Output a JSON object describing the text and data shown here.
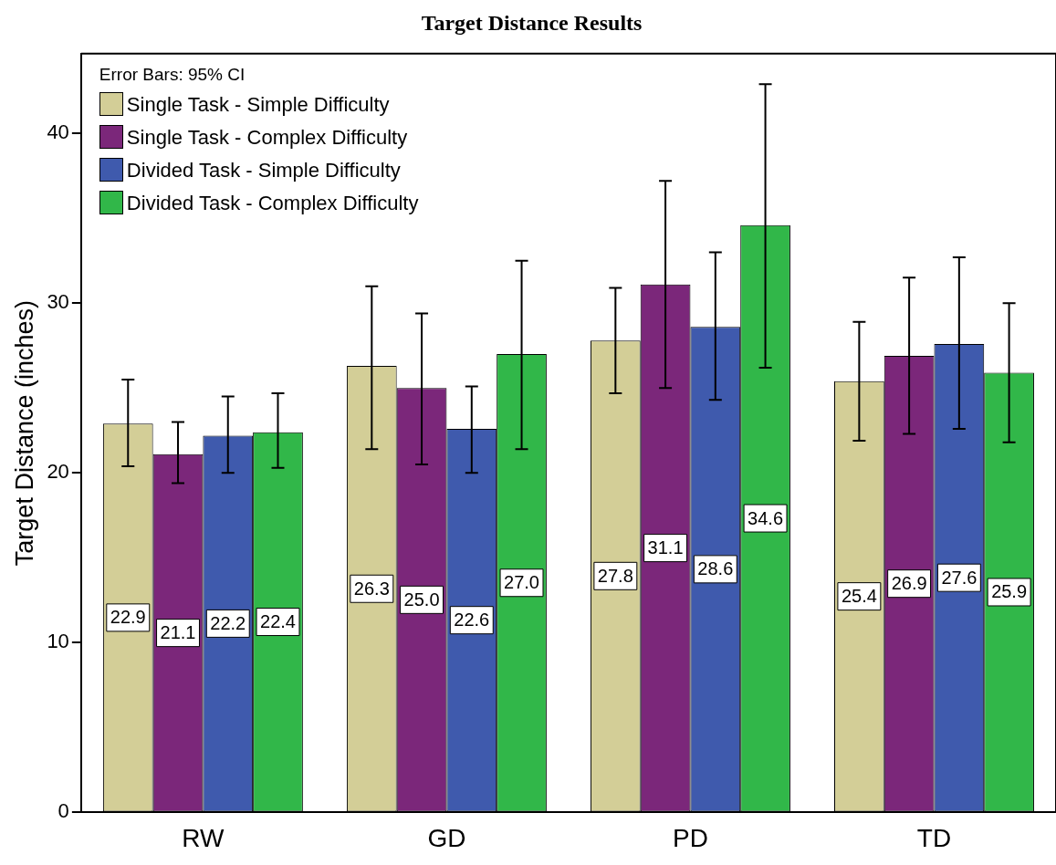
{
  "chart_data": {
    "type": "bar",
    "title": "Target Distance Results",
    "ylabel": "Target Distance (inches)",
    "legend_title": "Error Bars: 95% CI",
    "categories": [
      "RW",
      "GD",
      "PD",
      "TD"
    ],
    "series": [
      {
        "name": "Single Task - Simple Difficulty",
        "color": "#d3ce97",
        "values": [
          22.9,
          26.3,
          27.8,
          25.4
        ],
        "value_labels": [
          "22.9",
          "26.3",
          "27.8",
          "25.4"
        ],
        "errors": [
          [
            20.4,
            25.5
          ],
          [
            21.4,
            31.0
          ],
          [
            24.7,
            30.9
          ],
          [
            21.9,
            28.9
          ]
        ]
      },
      {
        "name": "Single Task - Complex Difficulty",
        "color": "#7b277a",
        "values": [
          21.1,
          25.0,
          31.1,
          26.9
        ],
        "value_labels": [
          "21.1",
          "25.0",
          "31.1",
          "26.9"
        ],
        "errors": [
          [
            19.4,
            23.0
          ],
          [
            20.5,
            29.4
          ],
          [
            25.0,
            37.2
          ],
          [
            22.3,
            31.5
          ]
        ]
      },
      {
        "name": "Divided Task - Simple Difficulty",
        "color": "#3f5aad",
        "values": [
          22.2,
          22.6,
          28.6,
          27.6
        ],
        "value_labels": [
          "22.2",
          "22.6",
          "28.6",
          "27.6"
        ],
        "errors": [
          [
            20.0,
            24.5
          ],
          [
            20.0,
            25.1
          ],
          [
            24.3,
            33.0
          ],
          [
            22.6,
            32.7
          ]
        ]
      },
      {
        "name": "Divided Task - Complex Difficulty",
        "color": "#31b749",
        "values": [
          22.4,
          27.0,
          34.6,
          25.9
        ],
        "value_labels": [
          "22.4",
          "27.0",
          "34.6",
          "25.9"
        ],
        "errors": [
          [
            20.3,
            24.7
          ],
          [
            21.4,
            32.5
          ],
          [
            26.2,
            42.9
          ],
          [
            21.8,
            30.0
          ]
        ]
      }
    ],
    "ylim": [
      0,
      44.7
    ],
    "yticks": [
      0,
      10,
      20,
      30,
      40
    ],
    "grid": false,
    "legend": "top left"
  }
}
